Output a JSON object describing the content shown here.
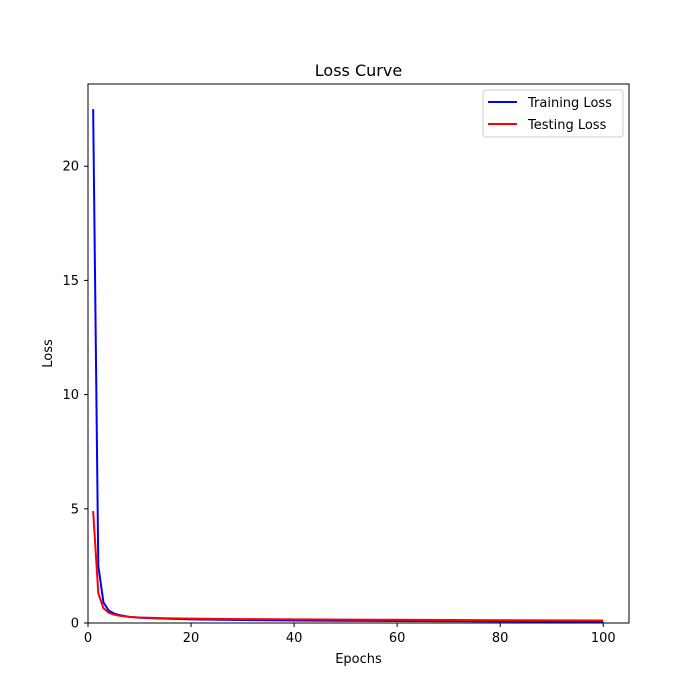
{
  "chart_data": {
    "type": "line",
    "title": "Loss Curve",
    "xlabel": "Epochs",
    "ylabel": "Loss",
    "xlim": [
      0,
      105
    ],
    "ylim": [
      0,
      23.6
    ],
    "xticks": [
      0,
      20,
      40,
      60,
      80,
      100
    ],
    "yticks": [
      0,
      5,
      10,
      15,
      20
    ],
    "grid": false,
    "legend_position": "top-right",
    "series": [
      {
        "name": "Training Loss",
        "color": "#0000ff",
        "x": [
          1,
          2,
          3,
          4,
          5,
          6,
          8,
          10,
          15,
          20,
          30,
          40,
          50,
          60,
          70,
          80,
          90,
          100
        ],
        "y": [
          22.5,
          2.5,
          0.9,
          0.55,
          0.42,
          0.35,
          0.27,
          0.23,
          0.19,
          0.16,
          0.13,
          0.11,
          0.1,
          0.09,
          0.08,
          0.07,
          0.065,
          0.06
        ]
      },
      {
        "name": "Testing Loss",
        "color": "#ff0000",
        "x": [
          1,
          2,
          3,
          4,
          5,
          6,
          8,
          10,
          15,
          20,
          30,
          40,
          50,
          60,
          70,
          80,
          90,
          100
        ],
        "y": [
          4.9,
          1.3,
          0.65,
          0.45,
          0.37,
          0.32,
          0.27,
          0.24,
          0.21,
          0.19,
          0.17,
          0.16,
          0.15,
          0.14,
          0.13,
          0.12,
          0.115,
          0.11
        ]
      }
    ]
  }
}
